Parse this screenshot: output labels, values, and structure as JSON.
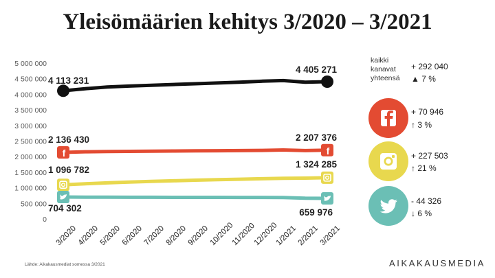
{
  "title": "Yleisömäärien kehitys 3/2020 – 3/2021",
  "chart_data": {
    "type": "line",
    "title": "Yleisömäärien kehitys 3/2020 – 3/2021",
    "categories": [
      "3/2020",
      "4/2020",
      "5/2020",
      "6/2020",
      "7/2020",
      "8/2020",
      "9/2020",
      "10/2020",
      "11/2020",
      "12/2020",
      "1/2021",
      "2/2021",
      "3/2021"
    ],
    "y_ticks": [
      "0",
      "500 000",
      "1 000 000",
      "1 500 000",
      "2 000 000",
      "2 500 000",
      "3 000 000",
      "3 500 000",
      "4 000 000",
      "4 500 000",
      "5 000 000"
    ],
    "ylim": [
      0,
      5000000
    ],
    "series": [
      {
        "name": "kaikki kanavat yhteensä",
        "color": "#111111",
        "values": [
          4113231,
          4180000,
          4235000,
          4265000,
          4290000,
          4315000,
          4340000,
          4365000,
          4390000,
          4420000,
          4440000,
          4390000,
          4405271
        ],
        "start_label": "4 113 231",
        "end_label": "4 405 271",
        "icon": null
      },
      {
        "name": "Facebook",
        "color": "#e34b32",
        "values": [
          2136430,
          2155000,
          2165000,
          2170000,
          2175000,
          2180000,
          2185000,
          2190000,
          2195000,
          2200000,
          2215000,
          2195000,
          2207376
        ],
        "start_label": "2 136 430",
        "end_label": "2 207 376",
        "icon": "facebook-icon"
      },
      {
        "name": "Instagram",
        "color": "#e8d84e",
        "values": [
          1096782,
          1130000,
          1160000,
          1185000,
          1205000,
          1225000,
          1245000,
          1260000,
          1275000,
          1290000,
          1305000,
          1310000,
          1324285
        ],
        "start_label": "1 096 782",
        "end_label": "1 324 285",
        "icon": "instagram-icon"
      },
      {
        "name": "Twitter",
        "color": "#6bbfb5",
        "values": [
          704302,
          700000,
          698000,
          697000,
          696000,
          695000,
          694000,
          693000,
          692000,
          690000,
          688000,
          665000,
          659976
        ],
        "start_label": "704 302",
        "end_label": "659 976",
        "icon": "twitter-icon"
      }
    ]
  },
  "side": {
    "total_label": "kaikki kanavat yhteensä",
    "total_delta": "+ 292 040",
    "total_pct": "7 %",
    "items": [
      {
        "name": "facebook",
        "color": "#e34b32",
        "delta": "+ 70 946",
        "pct": "3 %",
        "direction": "up"
      },
      {
        "name": "instagram",
        "color": "#e8d84e",
        "delta": "+ 227 503",
        "pct": "21 %",
        "direction": "up"
      },
      {
        "name": "twitter",
        "color": "#6bbfb5",
        "delta": "- 44 326",
        "pct": "6 %",
        "direction": "down"
      }
    ]
  },
  "source": "Lähde: Aikakausmediat somessa 3/2021",
  "brand": "AIKAKAUSMEDIA",
  "arrows": {
    "up": "↑",
    "down": "↓"
  }
}
